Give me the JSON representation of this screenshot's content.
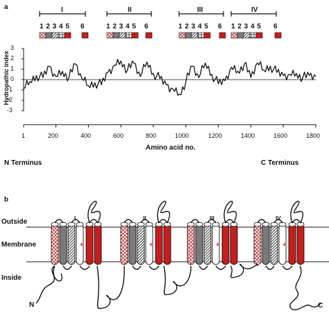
{
  "panel_a": {
    "panel_label": "a",
    "domains": [
      {
        "name": "I",
        "segments": "1 2 3 4 5",
        "segment6": "6"
      },
      {
        "name": "II",
        "segments": "1 2 3 4 5",
        "segment6": "6"
      },
      {
        "name": "III",
        "segments": "1 2 3 4 5",
        "segment6": "6"
      },
      {
        "name": "IV",
        "segments": "1 2 3 4 5",
        "segment6": "6"
      }
    ],
    "chart_data": {
      "type": "line",
      "ylabel": "Hydropathic index",
      "xlabel": "Amino acid no.",
      "xlim": [
        1,
        1800
      ],
      "ylim": [
        -3,
        3
      ],
      "y_ticks": [
        "3",
        "2",
        "1",
        "0",
        "-1",
        "-2",
        "-3"
      ],
      "x_ticks": [
        "1",
        "200",
        "400",
        "600",
        "800",
        "1000",
        "1200",
        "1400",
        "1600",
        "1800"
      ],
      "x": [
        1,
        40,
        80,
        120,
        160,
        200,
        240,
        280,
        320,
        360,
        400,
        440,
        480,
        520,
        560,
        600,
        640,
        680,
        720,
        760,
        800,
        840,
        880,
        920,
        960,
        1000,
        1040,
        1080,
        1120,
        1160,
        1200,
        1240,
        1280,
        1320,
        1360,
        1400,
        1440,
        1480,
        1520,
        1560,
        1600,
        1640,
        1680,
        1720,
        1760,
        1800
      ],
      "values": [
        -0.9,
        -0.2,
        0.4,
        0.2,
        1.3,
        0.3,
        0.8,
        0.2,
        1.5,
        0.1,
        -0.6,
        -0.3,
        -0.5,
        0.7,
        1.4,
        1.8,
        0.9,
        1.6,
        0.3,
        1.7,
        0.6,
        0.1,
        -0.5,
        -0.9,
        -1.4,
        -0.2,
        1.3,
        0.2,
        1.6,
        0.5,
        -0.4,
        -0.1,
        1.2,
        0.8,
        1.5,
        0.2,
        1.6,
        0.9,
        1.3,
        0.7,
        0.4,
        0.5,
        0.6,
        0.2,
        0.4,
        0.3
      ],
      "annotations": [
        "N Terminus",
        "C Terminus"
      ]
    }
  },
  "panel_b": {
    "panel_label": "b",
    "region_labels": [
      "Outside",
      "Membrane",
      "Inside"
    ],
    "domain_labels": [
      "I",
      "II",
      "III",
      "IV"
    ],
    "terminus_labels": [
      "N",
      "C"
    ],
    "charge_mark": "+"
  },
  "colors": {
    "red": "#c41e1e",
    "gray": "#7a7a7a",
    "black": "#111111"
  }
}
